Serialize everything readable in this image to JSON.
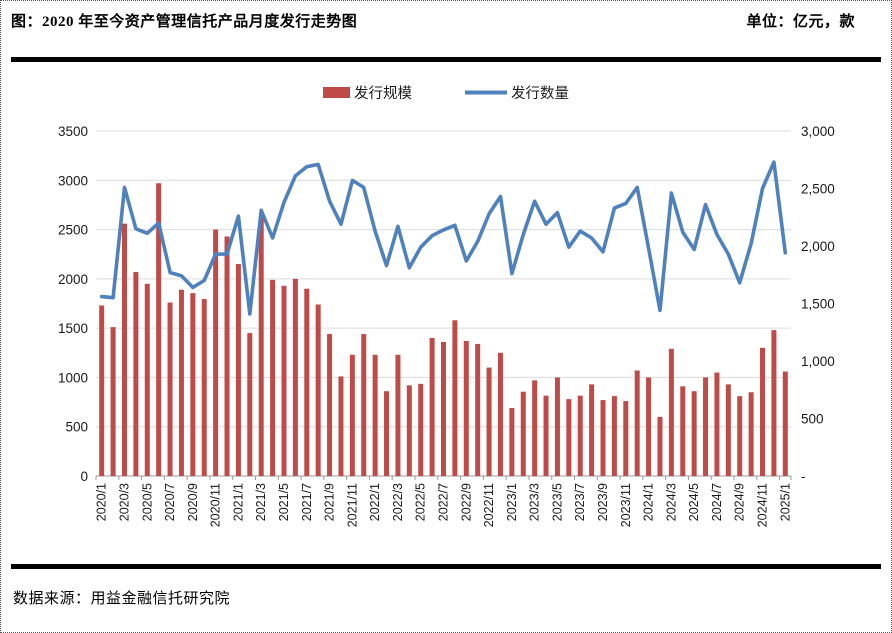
{
  "header": {
    "title": "图：2020 年至今资产管理信托产品月度发行走势图",
    "unit": "单位：亿元，款"
  },
  "footer": {
    "source": "数据来源：用益金融信托研究院"
  },
  "chart_data": {
    "type": "bar+line dual-axis",
    "title": "2020年至今资产管理信托产品月度发行走势图",
    "legend_position": "top-center",
    "grid": "horizontal",
    "x_label_every": 2,
    "categories": [
      "2020/1",
      "2020/2",
      "2020/3",
      "2020/4",
      "2020/5",
      "2020/6",
      "2020/7",
      "2020/8",
      "2020/9",
      "2020/10",
      "2020/11",
      "2020/12",
      "2021/1",
      "2021/2",
      "2021/3",
      "2021/4",
      "2021/5",
      "2021/6",
      "2021/7",
      "2021/8",
      "2021/9",
      "2021/10",
      "2021/11",
      "2021/12",
      "2022/1",
      "2022/2",
      "2022/3",
      "2022/4",
      "2022/5",
      "2022/6",
      "2022/7",
      "2022/8",
      "2022/9",
      "2022/10",
      "2022/11",
      "2022/12",
      "2023/1",
      "2023/2",
      "2023/3",
      "2023/4",
      "2023/5",
      "2023/6",
      "2023/7",
      "2023/8",
      "2023/9",
      "2023/10",
      "2023/11",
      "2023/12",
      "2024/1",
      "2024/2",
      "2024/3",
      "2024/4",
      "2024/5",
      "2024/6",
      "2024/7",
      "2024/8",
      "2024/9",
      "2024/10",
      "2024/11",
      "2024/12",
      "2025/1"
    ],
    "series": [
      {
        "name": "发行规模",
        "type": "bar",
        "axis": "left",
        "unit": "亿元",
        "color": "#BE4B48",
        "values": [
          1730,
          1510,
          2560,
          2070,
          1950,
          2970,
          1760,
          1890,
          1855,
          1795,
          2500,
          2430,
          2150,
          1450,
          2620,
          1990,
          1930,
          2000,
          1900,
          1740,
          1440,
          1010,
          1230,
          1440,
          1230,
          860,
          1230,
          920,
          935,
          1400,
          1360,
          1580,
          1370,
          1340,
          1100,
          1250,
          690,
          855,
          970,
          815,
          1000,
          780,
          815,
          930,
          770,
          810,
          760,
          1070,
          1000,
          600,
          1290,
          910,
          860,
          1000,
          1050,
          930,
          810,
          850,
          1300,
          1480,
          1060
        ]
      },
      {
        "name": "发行数量",
        "type": "line",
        "axis": "right",
        "unit": "款",
        "color": "#4F81BD",
        "values": [
          1560,
          1550,
          2510,
          2150,
          2110,
          2200,
          1770,
          1740,
          1640,
          1700,
          1930,
          1930,
          2260,
          1410,
          2310,
          2070,
          2380,
          2610,
          2690,
          2710,
          2390,
          2190,
          2570,
          2510,
          2130,
          1830,
          2170,
          1810,
          1990,
          2090,
          2140,
          2180,
          1870,
          2040,
          2280,
          2430,
          1760,
          2100,
          2390,
          2190,
          2290,
          1990,
          2130,
          2070,
          1950,
          2330,
          2370,
          2510,
          1980,
          1440,
          2460,
          2120,
          1970,
          2360,
          2100,
          1930,
          1680,
          2020,
          2500,
          2730,
          1940
        ]
      }
    ],
    "left_axis": {
      "min": 0,
      "max": 3500,
      "step": 500,
      "tick_labels": [
        "0",
        "500",
        "1000",
        "1500",
        "2000",
        "2500",
        "3000",
        "3500"
      ]
    },
    "right_axis": {
      "min": 0,
      "max": 3000,
      "step": 500,
      "tick_labels": [
        "-",
        "500",
        "1,000",
        "1,500",
        "2,000",
        "2,500",
        "3,000"
      ]
    },
    "colors": {
      "gridline": "#DCDCDC",
      "axis": "#9A9A9A"
    }
  }
}
